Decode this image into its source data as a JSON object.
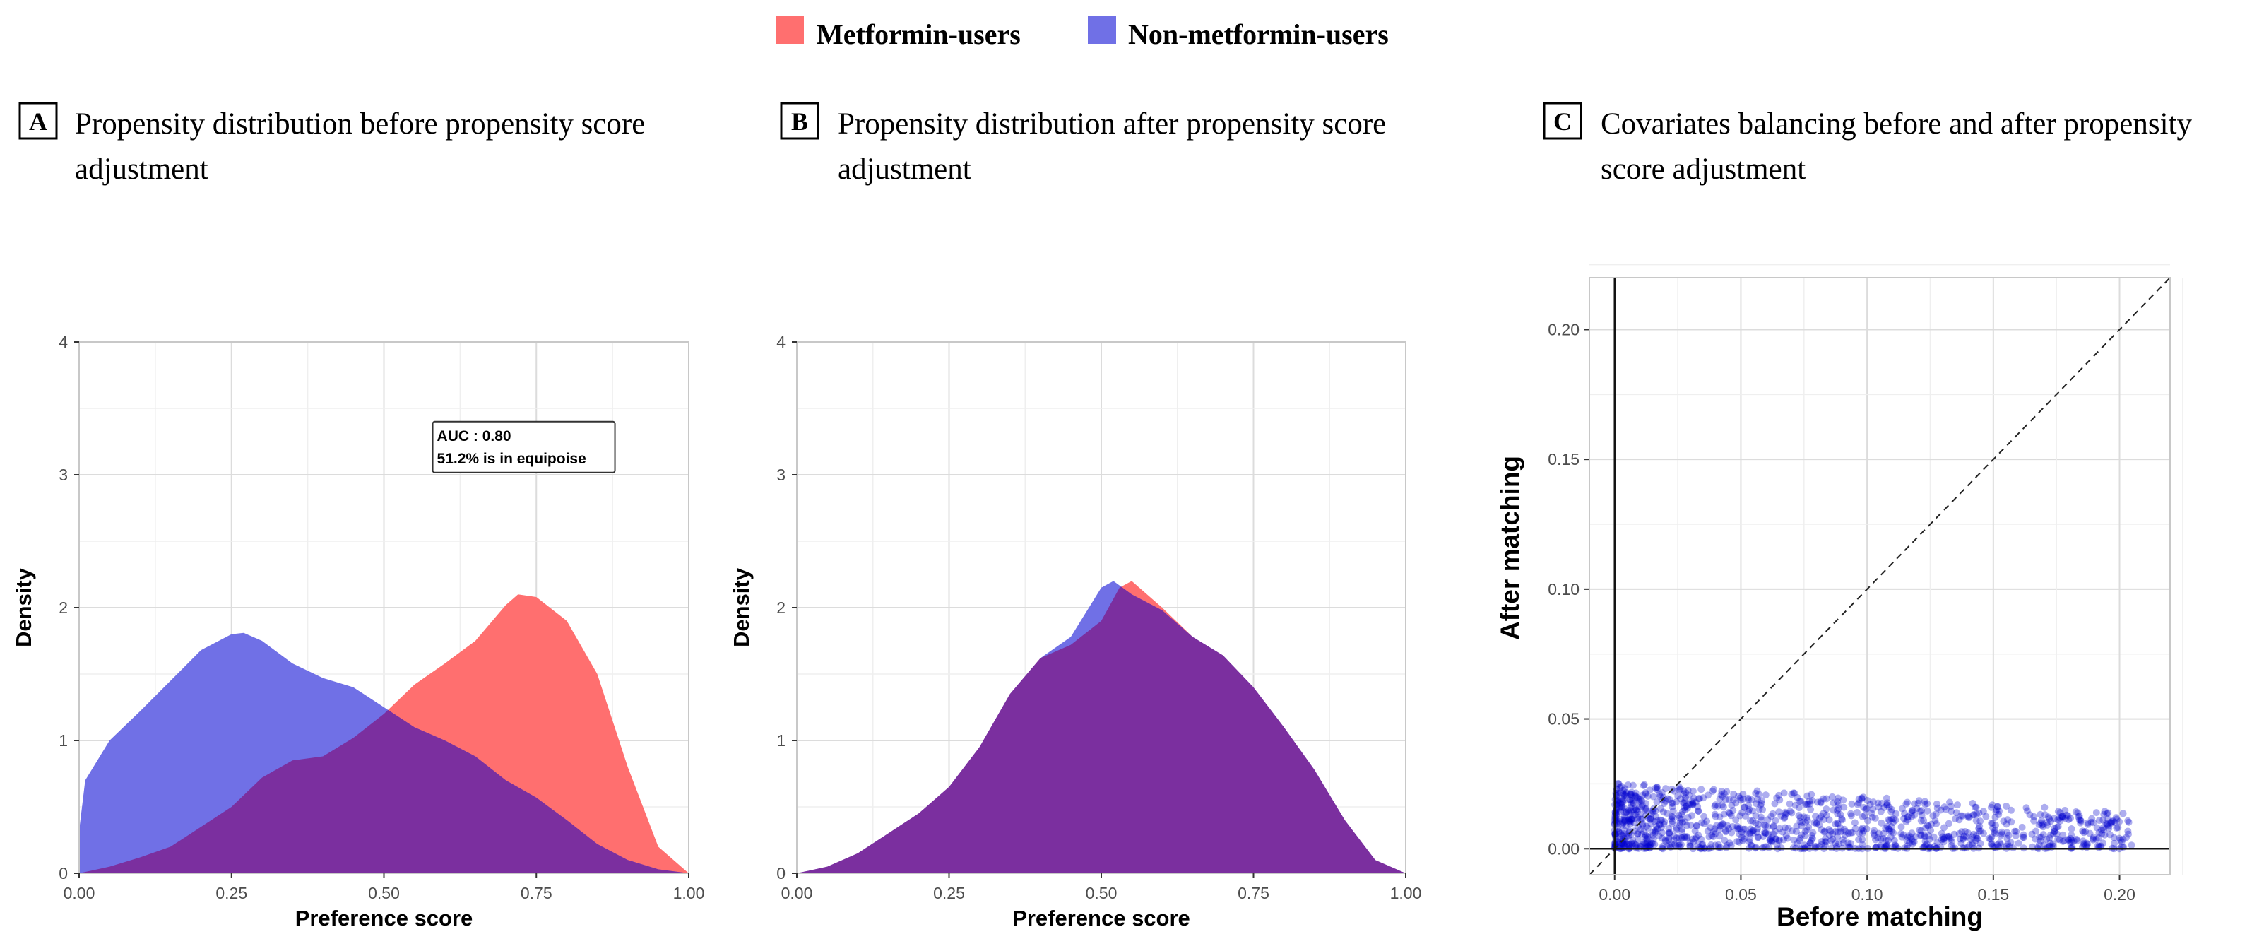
{
  "legend": {
    "items": [
      {
        "label": "Metformin-users",
        "color": "#ff6f6f"
      },
      {
        "label": "Non-metformin-users",
        "color": "#7070e6"
      }
    ],
    "overlap_color": "#7b2f9f"
  },
  "panels": [
    {
      "letter": "A",
      "title_line1": "Propensity distribution before propensity score",
      "title_line2": "adjustment"
    },
    {
      "letter": "B",
      "title_line1": "Propensity distribution after propensity score",
      "title_line2": "adjustment"
    },
    {
      "letter": "C",
      "title_line1": "Covariates balancing before and after propensity",
      "title_line2": "score adjustment"
    }
  ],
  "chart_data": [
    {
      "type": "area",
      "title": "",
      "xlabel": "Preference score",
      "ylabel": "Density",
      "xlim": [
        0,
        1
      ],
      "ylim": [
        0,
        4
      ],
      "xticks": [
        "0.00",
        "0.25",
        "0.50",
        "0.75",
        "1.00"
      ],
      "yticks": [
        "0",
        "1",
        "2",
        "3",
        "4"
      ],
      "grid": true,
      "annotation": {
        "line1": "AUC : 0.80",
        "line2": "51.2% is in equipoise"
      },
      "series": [
        {
          "name": "Metformin-users",
          "x": [
            0,
            0.05,
            0.1,
            0.15,
            0.2,
            0.25,
            0.3,
            0.35,
            0.4,
            0.45,
            0.5,
            0.55,
            0.6,
            0.65,
            0.7,
            0.72,
            0.75,
            0.8,
            0.85,
            0.9,
            0.95,
            1.0
          ],
          "y": [
            0,
            0.05,
            0.12,
            0.2,
            0.35,
            0.5,
            0.72,
            0.85,
            0.88,
            1.02,
            1.2,
            1.42,
            1.58,
            1.75,
            2.02,
            2.1,
            2.08,
            1.9,
            1.5,
            0.8,
            0.2,
            0
          ]
        },
        {
          "name": "Non-metformin-users",
          "x": [
            0,
            0.01,
            0.05,
            0.1,
            0.15,
            0.2,
            0.25,
            0.27,
            0.3,
            0.35,
            0.4,
            0.45,
            0.5,
            0.55,
            0.6,
            0.65,
            0.7,
            0.75,
            0.8,
            0.85,
            0.9,
            0.95,
            1.0
          ],
          "y": [
            0.32,
            0.7,
            1.0,
            1.22,
            1.45,
            1.68,
            1.8,
            1.81,
            1.75,
            1.58,
            1.47,
            1.4,
            1.25,
            1.1,
            1.0,
            0.88,
            0.7,
            0.57,
            0.4,
            0.22,
            0.1,
            0.03,
            0
          ]
        }
      ]
    },
    {
      "type": "area",
      "title": "",
      "xlabel": "Preference score",
      "ylabel": "Density",
      "xlim": [
        0,
        1
      ],
      "ylim": [
        0,
        4
      ],
      "xticks": [
        "0.00",
        "0.25",
        "0.50",
        "0.75",
        "1.00"
      ],
      "yticks": [
        "0",
        "1",
        "2",
        "3",
        "4"
      ],
      "grid": true,
      "series": [
        {
          "name": "Metformin-users",
          "x": [
            0,
            0.05,
            0.1,
            0.15,
            0.2,
            0.25,
            0.3,
            0.35,
            0.4,
            0.45,
            0.5,
            0.53,
            0.55,
            0.6,
            0.65,
            0.7,
            0.75,
            0.8,
            0.85,
            0.9,
            0.95,
            1.0
          ],
          "y": [
            0,
            0.05,
            0.15,
            0.3,
            0.45,
            0.65,
            0.95,
            1.35,
            1.62,
            1.72,
            1.9,
            2.15,
            2.2,
            2.0,
            1.78,
            1.64,
            1.4,
            1.1,
            0.78,
            0.4,
            0.1,
            0
          ]
        },
        {
          "name": "Non-metformin-users",
          "x": [
            0,
            0.05,
            0.1,
            0.15,
            0.2,
            0.25,
            0.3,
            0.35,
            0.4,
            0.45,
            0.5,
            0.52,
            0.55,
            0.6,
            0.65,
            0.7,
            0.75,
            0.8,
            0.85,
            0.9,
            0.95,
            1.0
          ],
          "y": [
            0,
            0.05,
            0.15,
            0.3,
            0.45,
            0.65,
            0.95,
            1.35,
            1.62,
            1.78,
            2.15,
            2.2,
            2.1,
            1.98,
            1.78,
            1.64,
            1.4,
            1.1,
            0.78,
            0.4,
            0.1,
            0
          ]
        }
      ]
    },
    {
      "type": "scatter",
      "title": "",
      "xlabel": "Before matching",
      "ylabel": "After matching",
      "xlim": [
        -0.01,
        0.22
      ],
      "ylim": [
        -0.01,
        0.22
      ],
      "xticks": [
        "0.00",
        "0.05",
        "0.10",
        "0.15",
        "0.20"
      ],
      "yticks": [
        "0.00",
        "0.05",
        "0.10",
        "0.15",
        "0.20"
      ],
      "grid": true,
      "reference_line": "y = x",
      "point_color": "#0000cc",
      "point_count": 1200,
      "x_range": [
        0,
        0.205
      ],
      "y_range": [
        0,
        0.03
      ]
    }
  ]
}
